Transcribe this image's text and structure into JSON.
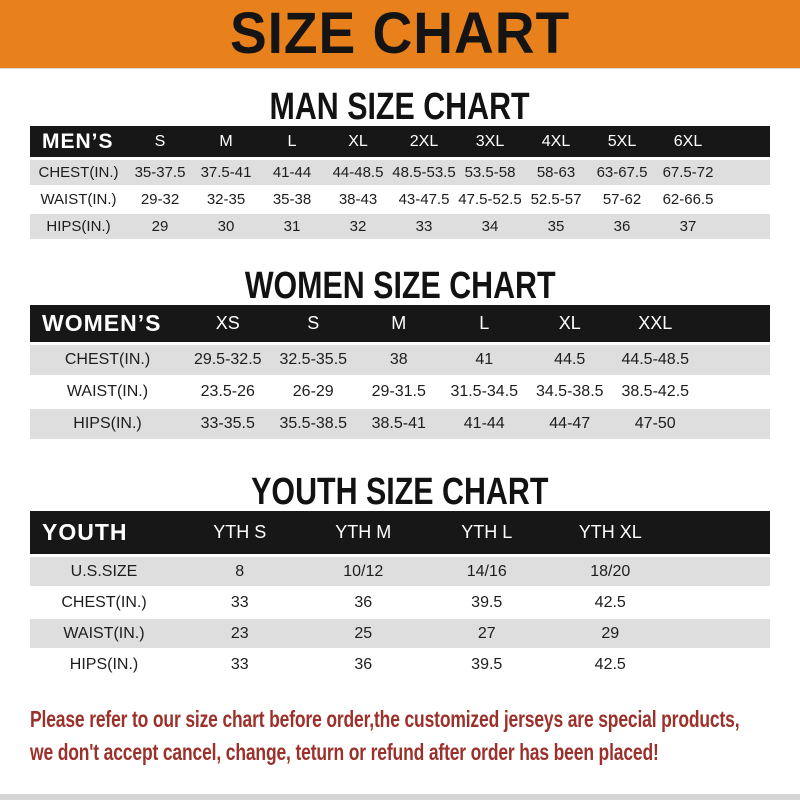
{
  "banner": {
    "title": "SIZE CHART"
  },
  "tables": [
    {
      "heading": "MAN SIZE CHART",
      "corner_label": "MEN’S",
      "columns": [
        "S",
        "M",
        "L",
        "XL",
        "2XL",
        "3XL",
        "4XL",
        "5XL",
        "6XL"
      ],
      "rows": [
        {
          "label": "CHEST(IN.)",
          "values": [
            "35-37.5",
            "37.5-41",
            "41-44",
            "44-48.5",
            "48.5-53.5",
            "53.5-58",
            "58-63",
            "63-67.5",
            "67.5-72"
          ]
        },
        {
          "label": "WAIST(IN.)",
          "values": [
            "29-32",
            "32-35",
            "35-38",
            "38-43",
            "43-47.5",
            "47.5-52.5",
            "52.5-57",
            "57-62",
            "62-66.5"
          ]
        },
        {
          "label": "HIPS(IN.)",
          "values": [
            "29",
            "30",
            "31",
            "32",
            "33",
            "34",
            "35",
            "36",
            "37"
          ]
        }
      ]
    },
    {
      "heading": "WOMEN SIZE CHART",
      "corner_label": "WOMEN’S",
      "columns": [
        "XS",
        "S",
        "M",
        "L",
        "XL",
        "XXL"
      ],
      "rows": [
        {
          "label": "CHEST(IN.)",
          "values": [
            "29.5-32.5",
            "32.5-35.5",
            "38",
            "41",
            "44.5",
            "44.5-48.5"
          ]
        },
        {
          "label": "WAIST(IN.)",
          "values": [
            "23.5-26",
            "26-29",
            "29-31.5",
            "31.5-34.5",
            "34.5-38.5",
            "38.5-42.5"
          ]
        },
        {
          "label": "HIPS(IN.)",
          "values": [
            "33-35.5",
            "35.5-38.5",
            "38.5-41",
            "41-44",
            "44-47",
            "47-50"
          ]
        }
      ]
    },
    {
      "heading": "YOUTH SIZE CHART",
      "corner_label": "YOUTH",
      "columns": [
        "YTH S",
        "YTH M",
        "YTH L",
        "YTH XL"
      ],
      "rows": [
        {
          "label": "U.S.SIZE",
          "values": [
            "8",
            "10/12",
            "14/16",
            "18/20"
          ]
        },
        {
          "label": "CHEST(IN.)",
          "values": [
            "33",
            "36",
            "39.5",
            "42.5"
          ]
        },
        {
          "label": "WAIST(IN.)",
          "values": [
            "23",
            "25",
            "27",
            "29"
          ]
        },
        {
          "label": "HIPS(IN.)",
          "values": [
            "33",
            "36",
            "39.5",
            "42.5"
          ]
        }
      ]
    }
  ],
  "note": {
    "line1": "Please refer to our size chart before order,the customized jerseys are special products,",
    "line2": "we don't accept cancel, change, teturn or refund after order has been placed!"
  },
  "colors": {
    "banner_orange": "#E8811C",
    "header_bar_black": "#171717",
    "row_gray": "#DEDEDE",
    "note_red": "#9C312B",
    "bottom_strip_gray": "#D6D6D6"
  }
}
